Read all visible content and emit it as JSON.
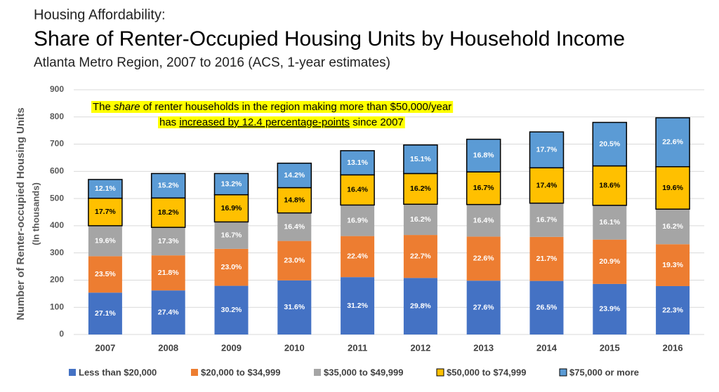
{
  "chart_data": {
    "type": "stacked_bar",
    "kicker": "Housing Affordability:",
    "title": "Share of Renter-Occupied Housing Units by Household Income",
    "subtitle": "Atlanta Metro Region, 2007 to 2016 (ACS, 1-year estimates)",
    "y_label": [
      "Number of Renter-occupied Housing Units",
      "(In thousands)"
    ],
    "annotation": [
      [
        "The ",
        "share",
        " of renter households in the region making more than $50,000/year"
      ],
      [
        "has ",
        "increased by 12.4 percentage-points",
        " since 2007"
      ]
    ],
    "categories": [
      "2007",
      "2008",
      "2009",
      "2010",
      "2011",
      "2012",
      "2013",
      "2014",
      "2015",
      "2016"
    ],
    "series": [
      {
        "name": "Less than $20,000",
        "color": "#4472c4",
        "label_color": "#ffffff",
        "values": [
          154,
          162,
          179,
          199,
          211,
          208,
          198,
          197,
          186,
          178
        ],
        "share_labels": [
          "27.1%",
          "27.4%",
          "30.2%",
          "31.6%",
          "31.2%",
          "29.8%",
          "27.6%",
          "26.5%",
          "23.9%",
          "22.3%"
        ]
      },
      {
        "name": "$20,000 to $34,999",
        "color": "#ed7d31",
        "label_color": "#ffffff",
        "values": [
          134,
          129,
          136,
          145,
          151,
          158,
          162,
          162,
          163,
          154
        ],
        "share_labels": [
          "23.5%",
          "21.8%",
          "23.0%",
          "23.0%",
          "22.4%",
          "22.7%",
          "22.6%",
          "21.7%",
          "20.9%",
          "19.3%"
        ]
      },
      {
        "name": "$35,000 to $49,999",
        "color": "#a5a5a5",
        "label_color": "#ffffff",
        "values": [
          112,
          103,
          99,
          103,
          114,
          113,
          118,
          124,
          126,
          129
        ],
        "share_labels": [
          "19.6%",
          "17.3%",
          "16.7%",
          "16.4%",
          "16.9%",
          "16.2%",
          "16.4%",
          "16.7%",
          "16.1%",
          "16.2%"
        ]
      },
      {
        "name": "$50,000 to $74,999",
        "color": "#ffc000",
        "label_color": "#000000",
        "outline": "#000000",
        "values": [
          101,
          108,
          100,
          93,
          111,
          113,
          120,
          130,
          145,
          156
        ],
        "share_labels": [
          "17.7%",
          "18.2%",
          "16.9%",
          "14.8%",
          "16.4%",
          "16.2%",
          "16.7%",
          "17.4%",
          "18.6%",
          "19.6%"
        ]
      },
      {
        "name": "$75,000 or more",
        "color": "#5b9bd5",
        "label_color": "#ffffff",
        "outline": "#000000",
        "values": [
          69,
          90,
          78,
          90,
          89,
          105,
          120,
          132,
          160,
          180
        ],
        "share_labels": [
          "12.1%",
          "15.2%",
          "13.2%",
          "14.2%",
          "13.1%",
          "15.1%",
          "16.8%",
          "17.7%",
          "20.5%",
          "22.6%"
        ]
      }
    ],
    "ylim": [
      0,
      900
    ],
    "yticks": [
      0,
      100,
      200,
      300,
      400,
      500,
      600,
      700,
      800,
      900
    ],
    "grid": true
  }
}
